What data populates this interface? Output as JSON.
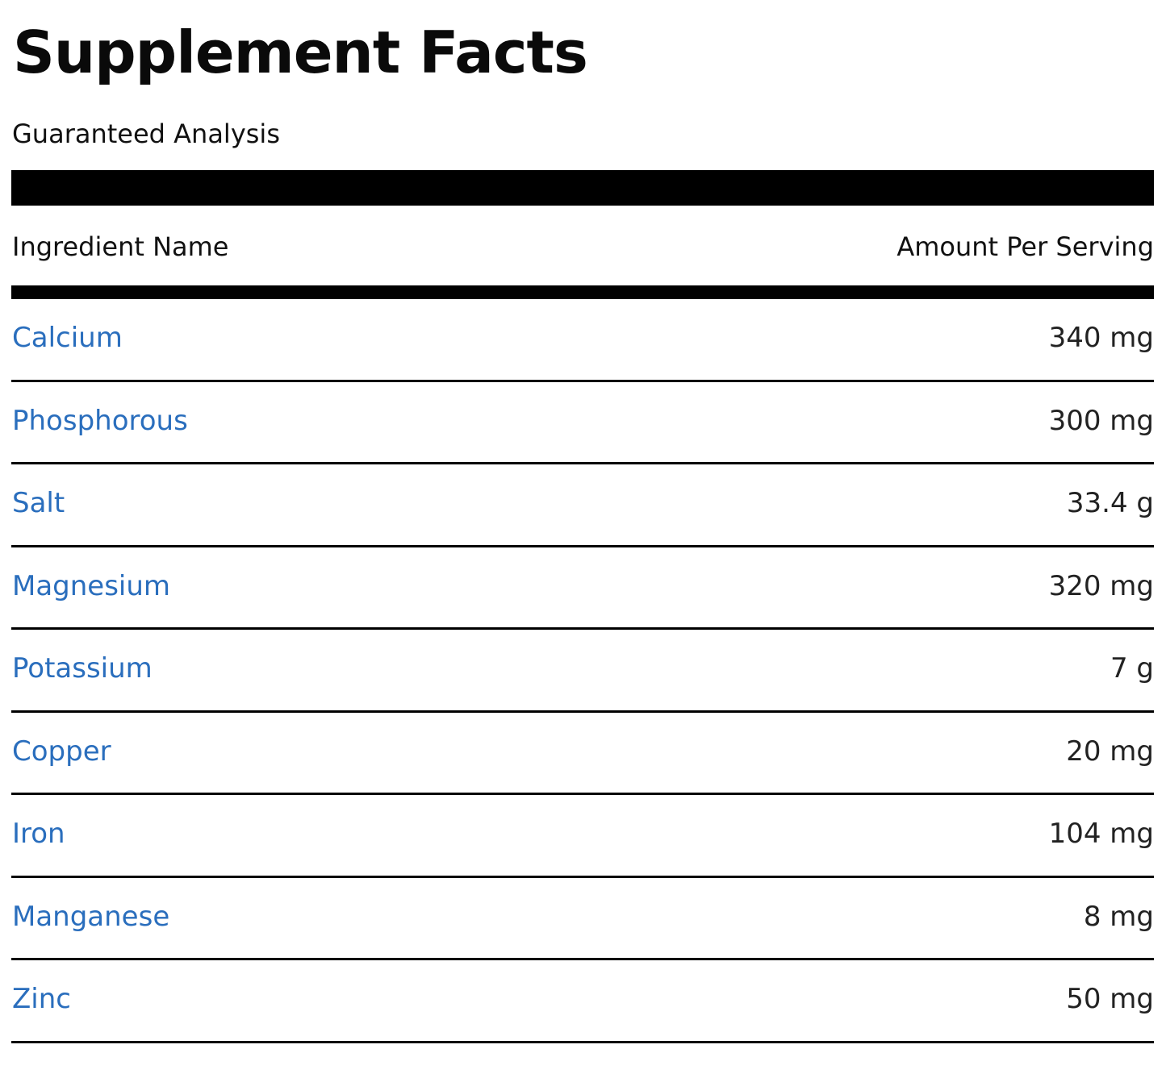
{
  "title": "Supplement Facts",
  "subtitle": "Guaranteed Analysis",
  "table": {
    "header": {
      "name": "Ingredient Name",
      "amount": "Amount Per Serving"
    },
    "rows": [
      {
        "name": "Calcium",
        "amount": "340 mg"
      },
      {
        "name": "Phosphorous",
        "amount": "300 mg"
      },
      {
        "name": "Salt",
        "amount": "33.4 g"
      },
      {
        "name": "Magnesium",
        "amount": "320 mg"
      },
      {
        "name": "Potassium",
        "amount": "7 g"
      },
      {
        "name": "Copper",
        "amount": "20 mg"
      },
      {
        "name": "Iron",
        "amount": "104 mg"
      },
      {
        "name": "Manganese",
        "amount": "8 mg"
      },
      {
        "name": "Zinc",
        "amount": "50 mg"
      }
    ]
  },
  "colors": {
    "link": "#2a6ebd",
    "rule": "#000000",
    "text": "#111111"
  }
}
